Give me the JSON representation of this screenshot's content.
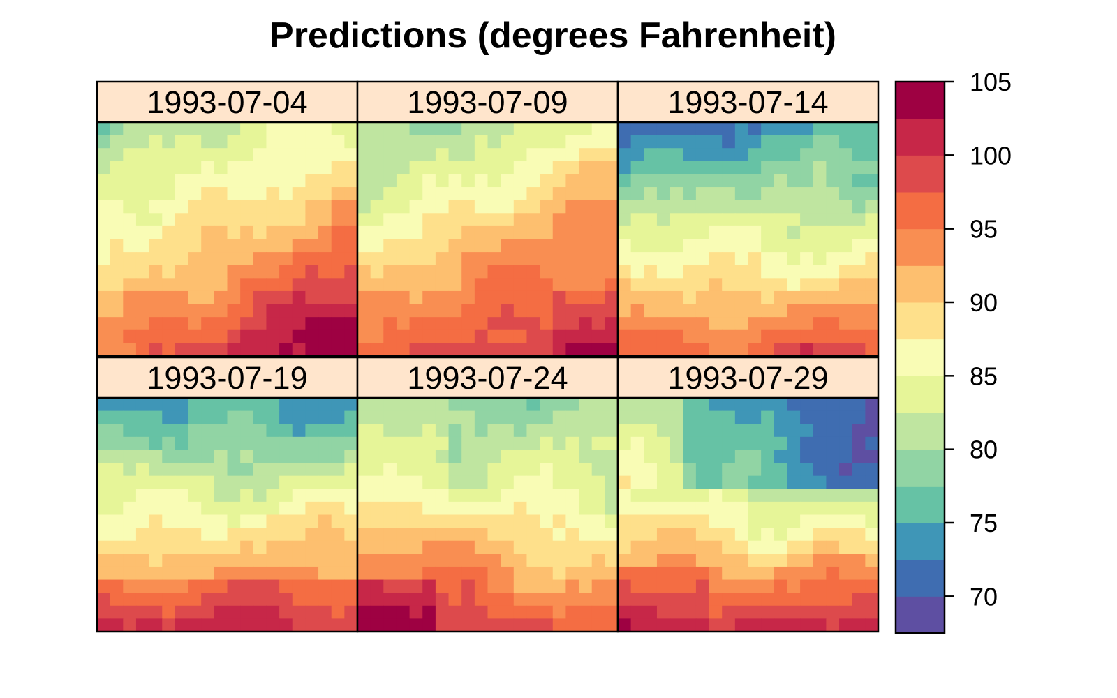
{
  "chart_data": {
    "type": "heatmap",
    "title": "Predictions (degrees Fahrenheit)",
    "panels": [
      {
        "label": "1993-07-04"
      },
      {
        "label": "1993-07-09"
      },
      {
        "label": "1993-07-14"
      },
      {
        "label": "1993-07-19"
      },
      {
        "label": "1993-07-24"
      },
      {
        "label": "1993-07-29"
      }
    ],
    "panel_layout": {
      "rows": 2,
      "cols": 3
    },
    "grid": {
      "cols": 20,
      "rows": 18
    },
    "colorbar": {
      "range": [
        67.5,
        105
      ],
      "ticks": [
        "105",
        "100",
        "95",
        "90",
        "85",
        "80",
        "75",
        "70"
      ],
      "tick_values": [
        105,
        100,
        95,
        90,
        85,
        80,
        75,
        70
      ],
      "breaks": [
        67.5,
        70,
        72.5,
        75,
        77.5,
        80,
        82.5,
        85,
        87.5,
        90,
        92.5,
        95,
        97.5,
        100,
        102.5,
        105
      ],
      "colors": [
        "#5E4FA2",
        "#3F6DB1",
        "#3F96B7",
        "#66C2A5",
        "#91D4A4",
        "#BFE5A0",
        "#E6F598",
        "#F9FCB5",
        "#FEE08B",
        "#FDBF6F",
        "#F98E52",
        "#F46D43",
        "#DD4A4C",
        "#C72748",
        "#9E0142"
      ]
    },
    "colors": {
      "strip_bg": "#FFE5CC",
      "border": "#000000"
    }
  }
}
